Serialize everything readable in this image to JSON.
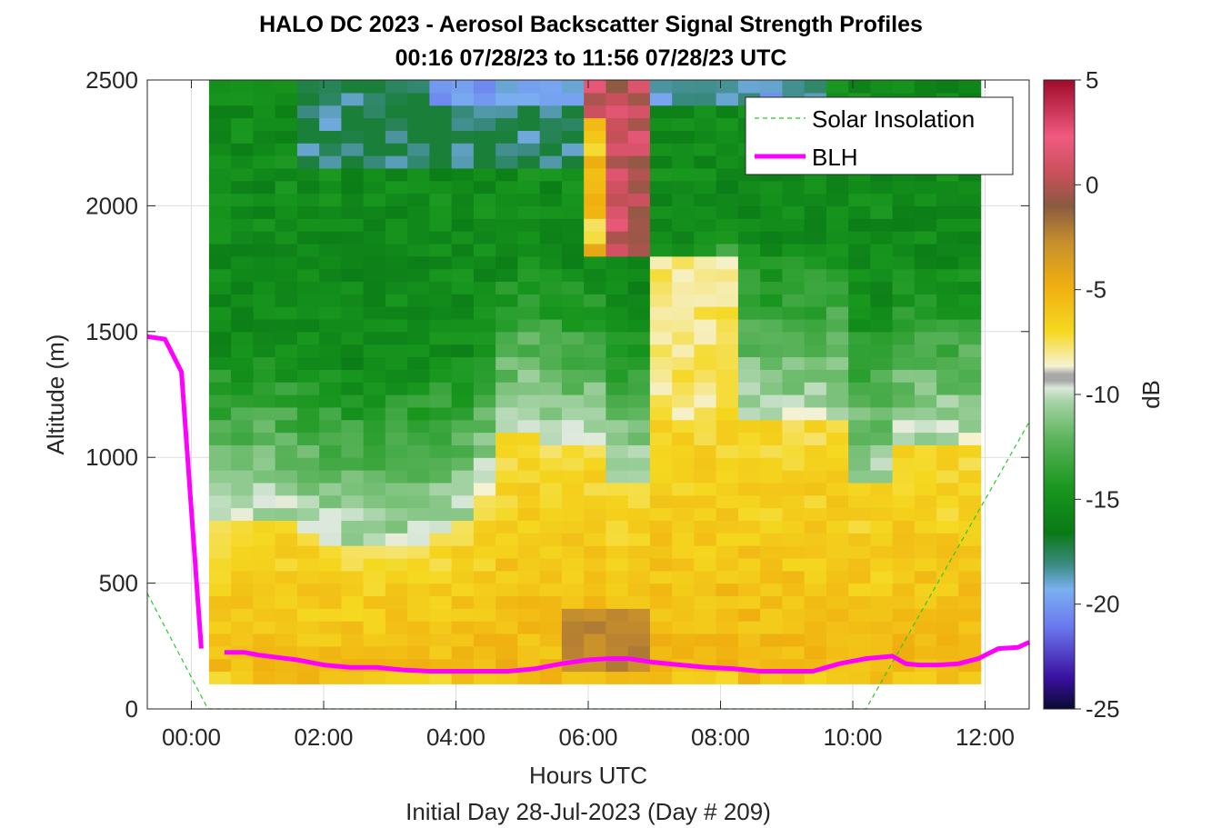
{
  "chart_data": {
    "type": "heatmap",
    "title": "HALO DC 2023 - Aerosol Backscatter Signal Strength Profiles",
    "subtitle": "00:16 07/28/23 to 11:56 07/28/23  UTC",
    "xlabel": "Hours UTC",
    "footer": "Initial Day 28-Jul-2023 (Day # 209)",
    "ylabel": "Altitude (m)",
    "colorbar_label": "dB",
    "xlim": [
      -0.6667,
      12.6667
    ],
    "ylim": [
      0,
      2500
    ],
    "clim": [
      -25,
      5
    ],
    "x_ticks": [
      0,
      2,
      4,
      6,
      8,
      10,
      12
    ],
    "x_tick_labels": [
      "00:00",
      "02:00",
      "04:00",
      "06:00",
      "08:00",
      "10:00",
      "12:00"
    ],
    "y_ticks": [
      0,
      500,
      1000,
      1500,
      2000,
      2500
    ],
    "y_tick_labels": [
      "0",
      "500",
      "1000",
      "1500",
      "2000",
      "2500"
    ],
    "colorbar_ticks": [
      5,
      0,
      -5,
      -10,
      -15,
      -20,
      -25
    ],
    "colorbar_tick_labels": [
      "5",
      "0",
      "-5",
      "-10",
      "-15",
      "-20",
      "-25"
    ],
    "grid": true,
    "legend_position": "top-right",
    "heatmap": {
      "x_start": 0.2667,
      "x_end": 11.9333,
      "columns": 35,
      "y_start": 100,
      "y_end": 2500,
      "rows": 48,
      "description": "backscatter signal strength in dB; high (-9 to -3 dB) below ~800-1200 m, low (-14 to -18 dB) aloft, strong plume near 06:00-07:00"
    },
    "series": [
      {
        "name": "Solar Insolation",
        "color": "#22cc22",
        "style": "dashed",
        "x": [
          -0.6667,
          0.25,
          10.2,
          12.6667
        ],
        "y": [
          460,
          0,
          0,
          1140
        ]
      },
      {
        "name": "BLH",
        "color": "#ff00ff",
        "style": "solid",
        "segments": [
          {
            "x": [
              -0.6667,
              -0.4,
              -0.15,
              0.15
            ],
            "y": [
              1480,
              1470,
              1340,
              240
            ]
          },
          {
            "x": [
              0.5,
              0.8,
              1.0,
              1.3,
              1.6,
              2.0,
              2.4,
              2.8,
              3.2,
              3.6,
              4.0,
              4.4,
              4.8,
              5.2,
              5.6,
              6.0,
              6.3,
              6.6,
              7.0,
              7.4,
              7.8,
              8.2,
              8.6,
              9.0,
              9.4,
              9.8,
              10.2,
              10.6,
              10.8,
              11.0,
              11.3,
              11.6,
              11.9,
              12.2,
              12.5,
              12.6667
            ],
            "y": [
              225,
              225,
              215,
              205,
              195,
              175,
              165,
              165,
              155,
              150,
              150,
              150,
              150,
              160,
              180,
              195,
              200,
              200,
              185,
              175,
              165,
              160,
              150,
              150,
              150,
              180,
              200,
              210,
              180,
              175,
              175,
              180,
              200,
              240,
              245,
              265
            ]
          }
        ]
      }
    ]
  }
}
